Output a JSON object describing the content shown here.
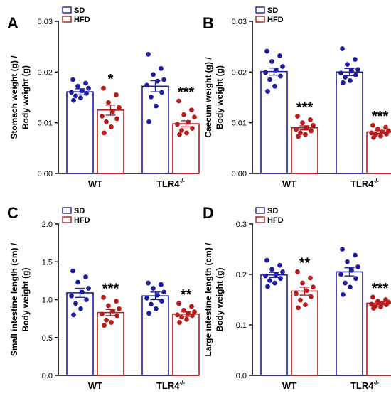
{
  "legend_labels": [
    "SD",
    "HFD"
  ],
  "colors": {
    "sd": "#1f1f9e",
    "hfd": "#b51c1c",
    "axis": "#000000"
  },
  "chart_data": [
    {
      "panel": "A",
      "type": "bar",
      "ylabel_lines": [
        "Stomach weight (g) /",
        "Body weight (g)"
      ],
      "ylim": [
        0,
        0.03
      ],
      "yticks": [
        "0.00",
        "0.01",
        "0.02",
        "0.03"
      ],
      "categories": [
        "WT",
        "TLR4"
      ],
      "category_superscript": [
        "",
        "-/-"
      ],
      "series": [
        {
          "name": "SD",
          "values": [
            0.0161,
            0.0172
          ],
          "sem": [
            0.0006,
            0.0011
          ],
          "points": [
            [
              0.0185,
              0.0178,
              0.0172,
              0.0168,
              0.0163,
              0.016,
              0.0158,
              0.0153,
              0.0149,
              0.0144
            ],
            [
              0.0235,
              0.0207,
              0.0195,
              0.0185,
              0.0182,
              0.0174,
              0.016,
              0.0151,
              0.0133,
              0.0102
            ]
          ]
        },
        {
          "name": "HFD",
          "values": [
            0.0125,
            0.0098
          ],
          "sem": [
            0.001,
            0.0006
          ],
          "points": [
            [
              0.0168,
              0.0155,
              0.014,
              0.013,
              0.0122,
              0.0113,
              0.0108,
              0.0102,
              0.0092,
              0.008
            ],
            [
              0.0143,
              0.0125,
              0.0116,
              0.0111,
              0.0101,
              0.0097,
              0.0089,
              0.0085,
              0.008,
              0.0077
            ]
          ]
        }
      ],
      "significance": [
        "*",
        "***"
      ]
    },
    {
      "panel": "B",
      "type": "bar",
      "ylabel_lines": [
        "Caecum weight (g) /",
        "Body weight (g)"
      ],
      "ylim": [
        0,
        0.03
      ],
      "yticks": [
        "0.00",
        "0.01",
        "0.02",
        "0.03"
      ],
      "categories": [
        "WT",
        "TLR4"
      ],
      "category_superscript": [
        "",
        "-/-"
      ],
      "series": [
        {
          "name": "SD",
          "values": [
            0.0201,
            0.02
          ],
          "sem": [
            0.0007,
            0.0007
          ],
          "points": [
            [
              0.0241,
              0.0232,
              0.0221,
              0.0211,
              0.0204,
              0.0199,
              0.0192,
              0.0185,
              0.0172,
              0.0162
            ],
            [
              0.0246,
              0.0225,
              0.0215,
              0.0205,
              0.0202,
              0.0198,
              0.0194,
              0.019,
              0.0183,
              0.0179
            ]
          ]
        },
        {
          "name": "HFD",
          "values": [
            0.009,
            0.0082
          ],
          "sem": [
            0.0004,
            0.0003
          ],
          "points": [
            [
              0.0113,
              0.0106,
              0.01,
              0.0095,
              0.009,
              0.0087,
              0.0084,
              0.008,
              0.0077,
              0.0073
            ],
            [
              0.0095,
              0.0091,
              0.0088,
              0.0084,
              0.0082,
              0.008,
              0.0078,
              0.0077,
              0.0074,
              0.0071
            ]
          ]
        }
      ],
      "significance": [
        "***",
        "***"
      ]
    },
    {
      "panel": "C",
      "type": "bar",
      "ylabel_lines": [
        "Small intestine length (cm) /",
        "Body weight (g)"
      ],
      "ylim": [
        0,
        2.0
      ],
      "yticks": [
        "0.0",
        "0.5",
        "1.0",
        "1.5",
        "2.0"
      ],
      "categories": [
        "WT",
        "TLR4"
      ],
      "category_superscript": [
        "",
        "-/-"
      ],
      "series": [
        {
          "name": "SD",
          "values": [
            1.09,
            1.05
          ],
          "sem": [
            0.06,
            0.05
          ],
          "points": [
            [
              1.38,
              1.3,
              1.23,
              1.15,
              1.1,
              1.05,
              1.0,
              0.95,
              0.88,
              0.8
            ],
            [
              1.22,
              1.2,
              1.15,
              1.1,
              1.06,
              1.02,
              0.98,
              0.94,
              0.88,
              0.82
            ]
          ]
        },
        {
          "name": "HFD",
          "values": [
            0.83,
            0.81
          ],
          "sem": [
            0.04,
            0.03
          ],
          "points": [
            [
              1.03,
              0.98,
              0.92,
              0.88,
              0.85,
              0.81,
              0.79,
              0.73,
              0.7,
              0.66
            ],
            [
              0.95,
              0.91,
              0.86,
              0.84,
              0.82,
              0.8,
              0.79,
              0.77,
              0.74,
              0.7
            ]
          ]
        }
      ],
      "significance": [
        "***",
        "**"
      ]
    },
    {
      "panel": "D",
      "type": "bar",
      "ylabel_lines": [
        "Large intestine length (cm) /",
        "Body weight (g)"
      ],
      "ylim": [
        0,
        0.3
      ],
      "yticks": [
        "0.0",
        "0.1",
        "0.2",
        "0.3"
      ],
      "categories": [
        "WT",
        "TLR4"
      ],
      "category_superscript": [
        "",
        "-/-"
      ],
      "series": [
        {
          "name": "SD",
          "values": [
            0.199,
            0.205
          ],
          "sem": [
            0.005,
            0.008
          ],
          "points": [
            [
              0.228,
              0.218,
              0.21,
              0.205,
              0.2,
              0.197,
              0.192,
              0.188,
              0.183,
              0.176
            ],
            [
              0.25,
              0.238,
              0.225,
              0.215,
              0.208,
              0.2,
              0.192,
              0.183,
              0.175,
              0.16
            ]
          ]
        },
        {
          "name": "HFD",
          "values": [
            0.167,
            0.143
          ],
          "sem": [
            0.008,
            0.003
          ],
          "points": [
            [
              0.205,
              0.193,
              0.183,
              0.175,
              0.168,
              0.162,
              0.156,
              0.149,
              0.14,
              0.134
            ],
            [
              0.155,
              0.15,
              0.147,
              0.145,
              0.143,
              0.141,
              0.14,
              0.138,
              0.136,
              0.133
            ]
          ]
        }
      ],
      "significance": [
        "**",
        "***"
      ]
    }
  ]
}
